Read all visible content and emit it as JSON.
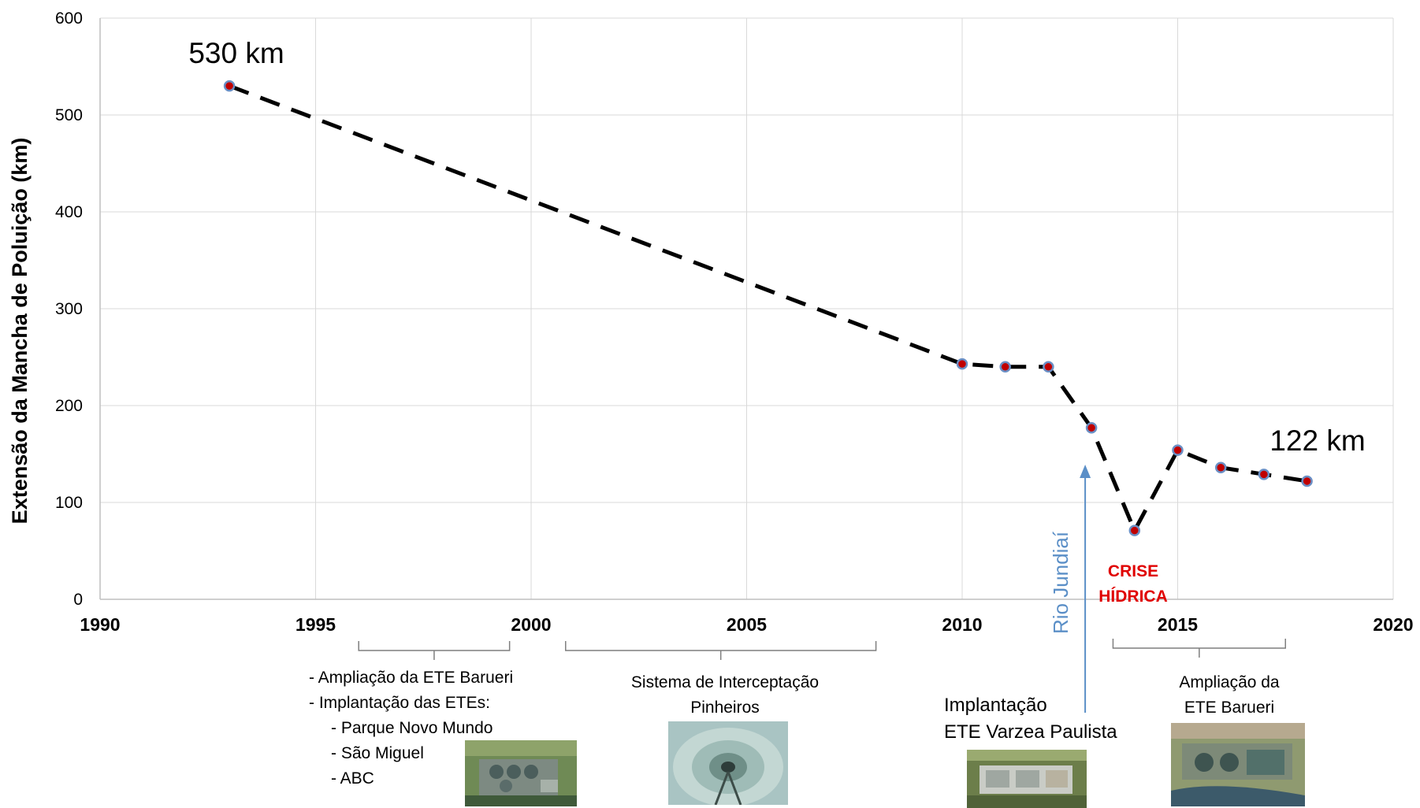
{
  "chart_data": {
    "type": "line",
    "title": "",
    "xlabel": "",
    "ylabel": "Extensão da Mancha de Poluição (km)",
    "xlim": [
      1990,
      2020
    ],
    "ylim": [
      0,
      600
    ],
    "x_ticks": [
      "1990",
      "1995",
      "2000",
      "2005",
      "2010",
      "2015",
      "2020"
    ],
    "y_ticks": [
      "0",
      "100",
      "200",
      "300",
      "400",
      "500",
      "600"
    ],
    "grid": true,
    "line_style": "dashed",
    "line_color": "#000000",
    "marker_fill": "#c00000",
    "marker_edge": "#6a8fc5",
    "series": [
      {
        "x": [
          1993,
          2010,
          2011,
          2012,
          2013,
          2014,
          2015,
          2016,
          2017,
          2018
        ],
        "values": [
          530,
          243,
          240,
          240,
          177,
          71,
          154,
          136,
          129,
          122
        ]
      }
    ],
    "annotations": {
      "start_label": "530 km",
      "end_label": "122 km",
      "crise_line1": "CRISE",
      "crise_line2": "HÍDRICA",
      "rio_label": "Rio Jundiaí",
      "rio_x": 2013
    }
  },
  "events": {
    "e1": {
      "line1": "- Ampliação da ETE Barueri",
      "line2": "- Implantação das ETEs:",
      "line3": "- Parque Novo Mundo",
      "line4": "- São Miguel",
      "line5": "- ABC",
      "range": [
        1996,
        1999.5
      ]
    },
    "e2": {
      "line1": "Sistema de Interceptação",
      "line2": "Pinheiros",
      "range": [
        2000.8,
        2008
      ]
    },
    "e3": {
      "line1": "Implantação",
      "line2": "ETE Varzea Paulista"
    },
    "e4": {
      "line1": "Ampliação da",
      "line2": "ETE Barueri",
      "range": [
        2013.5,
        2017.5
      ]
    }
  },
  "colors": {
    "grid": "#d9d9d9",
    "axis": "#bfbfbf",
    "bracket": "#7f7f7f",
    "arrow": "#5b8fc7"
  }
}
